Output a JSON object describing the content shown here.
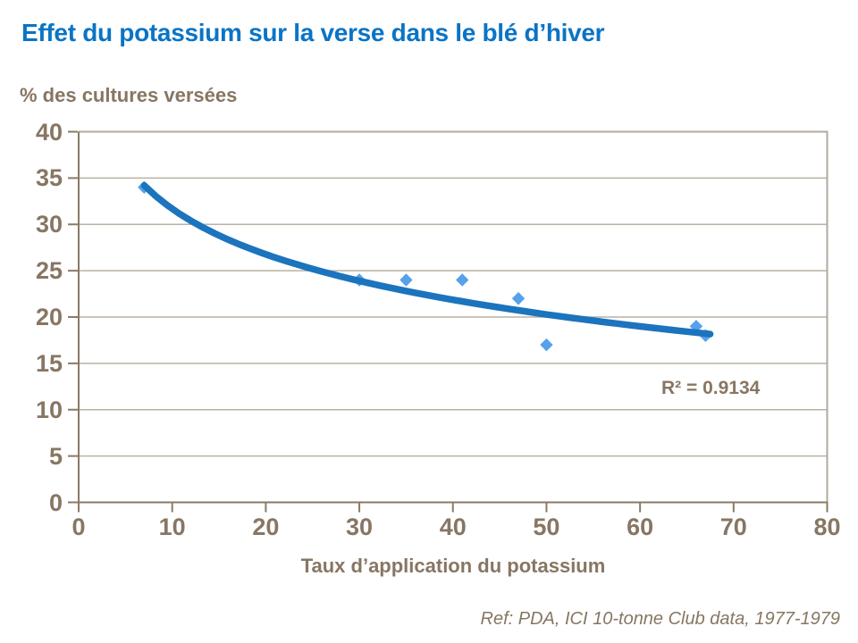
{
  "slide": {
    "title": "Effet du potassium sur la verse dans le blé d’hiver",
    "reference": "Ref: PDA, ICI 10-tonne Club data, 1977-1979"
  },
  "colors": {
    "background": "#ffffff",
    "title_blue": "#0a74c6",
    "text_brown": "#877663",
    "axis_brown": "#8a7a66",
    "gridline_tan": "#bab1a3",
    "border_tan": "#b3a99c",
    "marker_blue": "#55a2ea",
    "trend_blue": "#1b74bd"
  },
  "chart_data": {
    "type": "scatter",
    "title": "Effet du potassium sur la verse dans le blé d’hiver",
    "xlabel": "Taux d’application du potassium",
    "ylabel": "% des cultures versées",
    "xlim": [
      0,
      80
    ],
    "ylim": [
      0,
      40
    ],
    "x_ticks": [
      0,
      10,
      20,
      30,
      40,
      50,
      60,
      70,
      80
    ],
    "y_ticks": [
      0,
      5,
      10,
      15,
      20,
      25,
      30,
      35,
      40
    ],
    "grid": "horizontal",
    "legend_position": "none",
    "points": [
      {
        "x": 7,
        "y": 34
      },
      {
        "x": 30,
        "y": 24
      },
      {
        "x": 35,
        "y": 24
      },
      {
        "x": 41,
        "y": 24
      },
      {
        "x": 47,
        "y": 22
      },
      {
        "x": 50,
        "y": 17
      },
      {
        "x": 66,
        "y": 19
      },
      {
        "x": 67,
        "y": 18
      }
    ],
    "trendline": {
      "model": "logarithmic",
      "a": 47.98,
      "b": -7.08,
      "x_start": 7,
      "x_end": 67.5
    },
    "r_squared_label": "R² = 0.9134"
  }
}
